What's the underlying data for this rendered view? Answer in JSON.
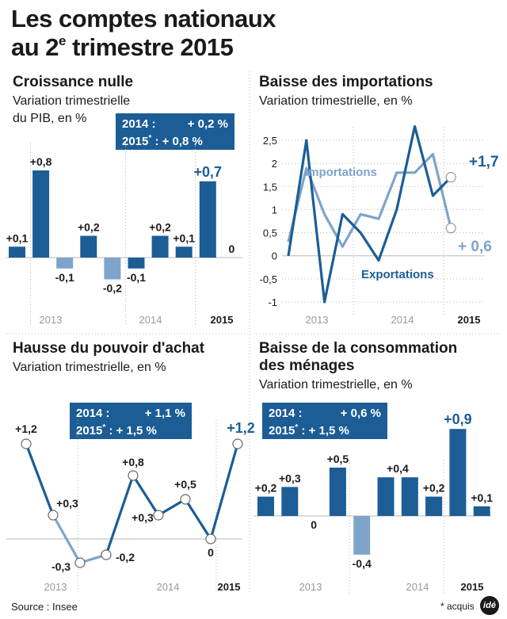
{
  "title_line1": "Les comptes nationaux",
  "title_line2_pre": "au 2",
  "title_line2_sup": "e",
  "title_line2_post": " trimestre 2015",
  "source": "Source : Insee",
  "footnote": "* acquis",
  "logo_text": "idé",
  "colors": {
    "dark": "#1c5d96",
    "light": "#7ea4cb",
    "grid": "#b8b8b8",
    "axis": "#333333"
  },
  "chart_data": [
    {
      "id": "pib",
      "type": "bar",
      "title": "Croissance nulle",
      "subtitle_lines": [
        "Variation trimestrielle",
        "du PIB, en %"
      ],
      "values": [
        0.1,
        0.8,
        -0.1,
        0.2,
        -0.2,
        -0.1,
        0.2,
        0.1,
        0.7,
        0
      ],
      "labels": [
        "+0,1",
        "+0,8",
        "-0,1",
        "+0,2",
        "-0,2",
        "-0,1",
        "+0,2",
        "+0,1",
        "+0,7",
        "0"
      ],
      "light_indices": [
        2,
        4
      ],
      "highlight_index": 8,
      "x_labels": [
        "2013",
        "2014",
        "2015"
      ],
      "info_rows": [
        {
          "label": "2014 :",
          "sup": "",
          "value": "+ 0,2 %"
        },
        {
          "label": "2015",
          "sup": "*",
          "value": ":   + 0,8 %"
        }
      ]
    },
    {
      "id": "importations",
      "type": "line",
      "title": "Baisse des importations",
      "subtitle_lines": [
        "Variation trimestrielle, en %"
      ],
      "ylim": [
        -1,
        2.5
      ],
      "y_ticks": [
        2.5,
        2,
        1.5,
        1,
        0.5,
        0,
        -0.5,
        -1
      ],
      "y_tick_labels": [
        "2,5",
        "2",
        "1,5",
        "1",
        "0,5",
        "0",
        "-0,5",
        "-1"
      ],
      "series": [
        {
          "name": "Importations",
          "values": [
            0.3,
            1.9,
            0.9,
            0.2,
            0.9,
            0.8,
            1.8,
            1.8,
            2.2,
            0.6
          ]
        },
        {
          "name": "Exportations",
          "values": [
            0,
            2.5,
            -1,
            0.9,
            0.5,
            -0.1,
            1,
            2.8,
            1.3,
            1.7
          ]
        }
      ],
      "end_labels": [
        "+ 0,6",
        "+1,7"
      ],
      "x_labels": [
        "2013",
        "2014",
        "2015"
      ]
    },
    {
      "id": "pouvoir_achat",
      "type": "line",
      "title": "Hausse du pouvoir d'achat",
      "subtitle_lines": [
        "Variation trimestrielle, en %"
      ],
      "values": [
        1.2,
        0.3,
        -0.3,
        -0.2,
        0.8,
        0.3,
        0.5,
        0,
        1.2
      ],
      "labels": [
        "+1,2",
        "+0,3",
        "-0,3",
        "-0,2",
        "+0,8",
        "+0,3",
        "+0,5",
        "0",
        "+1,2"
      ],
      "highlight_index": 8,
      "x_labels": [
        "2013",
        "2014",
        "2015"
      ],
      "info_rows": [
        {
          "label": "2014 :",
          "sup": "",
          "value": "+ 1,1 %"
        },
        {
          "label": "2015",
          "sup": "*",
          "value": ":   + 1,5 %"
        }
      ]
    },
    {
      "id": "consommation",
      "type": "bar",
      "title_lines": [
        "Baisse de la consommation",
        "des ménages"
      ],
      "subtitle_lines": [
        "Variation trimestrielle, en %"
      ],
      "values": [
        0.2,
        0.3,
        0,
        0.5,
        -0.4,
        0.4,
        0.4,
        0.2,
        0.9,
        0.1
      ],
      "labels": [
        "+0,2",
        "+0,3",
        "0",
        "+0,5",
        "-0,4",
        "+0,4",
        "",
        "+0,2",
        "+0,9",
        "+0,1"
      ],
      "light_indices": [
        4
      ],
      "highlight_index": 8,
      "x_labels": [
        "2013",
        "2014",
        "2015"
      ],
      "info_rows": [
        {
          "label": "2014 :",
          "sup": "",
          "value": "+ 0,6 %"
        },
        {
          "label": "2015",
          "sup": "*",
          "value": ":   + 1,5 %"
        }
      ]
    }
  ]
}
